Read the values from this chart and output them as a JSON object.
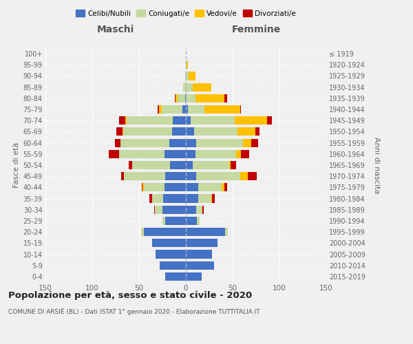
{
  "age_groups": [
    "0-4",
    "5-9",
    "10-14",
    "15-19",
    "20-24",
    "25-29",
    "30-34",
    "35-39",
    "40-44",
    "45-49",
    "50-54",
    "55-59",
    "60-64",
    "65-69",
    "70-74",
    "75-79",
    "80-84",
    "85-89",
    "90-94",
    "95-99",
    "100+"
  ],
  "birth_years": [
    "2015-2019",
    "2010-2014",
    "2005-2009",
    "2000-2004",
    "1995-1999",
    "1990-1994",
    "1985-1989",
    "1980-1984",
    "1975-1979",
    "1970-1974",
    "1965-1969",
    "1960-1964",
    "1955-1959",
    "1950-1954",
    "1945-1949",
    "1940-1944",
    "1935-1939",
    "1930-1934",
    "1925-1929",
    "1920-1924",
    "≤ 1919"
  ],
  "maschi": {
    "celibi": [
      22,
      28,
      32,
      36,
      45,
      22,
      25,
      24,
      23,
      22,
      17,
      23,
      18,
      15,
      14,
      4,
      1,
      0,
      0,
      0,
      0
    ],
    "coniugati": [
      0,
      0,
      0,
      0,
      3,
      3,
      8,
      12,
      22,
      44,
      40,
      48,
      52,
      52,
      49,
      22,
      8,
      3,
      1,
      0,
      0
    ],
    "vedovi": [
      0,
      0,
      0,
      0,
      0,
      0,
      0,
      0,
      1,
      0,
      0,
      0,
      0,
      1,
      2,
      3,
      2,
      0,
      0,
      0,
      0
    ],
    "divorziati": [
      0,
      0,
      0,
      0,
      0,
      0,
      1,
      3,
      1,
      3,
      4,
      11,
      6,
      6,
      6,
      1,
      1,
      0,
      0,
      0,
      0
    ]
  },
  "femmine": {
    "nubili": [
      17,
      30,
      28,
      34,
      42,
      12,
      11,
      13,
      13,
      11,
      7,
      10,
      11,
      9,
      5,
      2,
      0,
      0,
      0,
      0,
      0
    ],
    "coniugate": [
      0,
      0,
      0,
      0,
      3,
      3,
      7,
      14,
      25,
      47,
      39,
      44,
      50,
      46,
      47,
      18,
      10,
      7,
      3,
      1,
      0
    ],
    "vedove": [
      0,
      0,
      0,
      0,
      0,
      0,
      0,
      1,
      3,
      8,
      2,
      5,
      9,
      19,
      35,
      38,
      31,
      20,
      7,
      1,
      0
    ],
    "divorziate": [
      0,
      0,
      0,
      0,
      0,
      0,
      1,
      3,
      3,
      10,
      6,
      9,
      7,
      5,
      5,
      1,
      3,
      0,
      0,
      0,
      0
    ]
  },
  "colors": {
    "celibi": "#4472c4",
    "coniugati": "#c5d9a0",
    "vedovi": "#ffc000",
    "divorziati": "#c00000"
  },
  "xlim": 150,
  "title": "Popolazione per età, sesso e stato civile - 2020",
  "subtitle": "COMUNE DI ARSIÈ (BL) - Dati ISTAT 1° gennaio 2020 - Elaborazione TUTTITALIA.IT",
  "xlabel_left": "Maschi",
  "xlabel_right": "Femmine",
  "ylabel_left": "Fasce di età",
  "ylabel_right": "Anni di nascita",
  "legend_labels": [
    "Celibi/Nubili",
    "Coniugati/e",
    "Vedovi/e",
    "Divorziati/e"
  ],
  "background_color": "#f0f0f0"
}
